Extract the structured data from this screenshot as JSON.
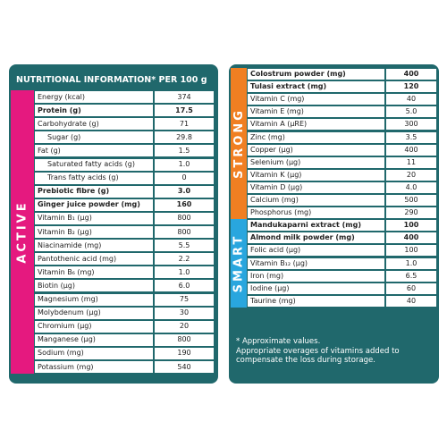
{
  "left": {
    "title": "NUTRITIONAL INFORMATION* PER 100 g",
    "side_label": "ACTIVE",
    "side_color": "#e5197f",
    "rows": [
      {
        "name": "Energy (kcal)",
        "value": "374"
      },
      {
        "name": "Protein (g)",
        "value": "17.5",
        "bold": true
      },
      {
        "name": "Carbohydrate (g)",
        "value": "71"
      },
      {
        "name": "Sugar (g)",
        "value": "29.8",
        "indent": true
      },
      {
        "name": "Fat (g)",
        "value": "1.5"
      },
      {
        "name": "Saturated fatty acids (g)",
        "value": "1.0",
        "indent": true
      },
      {
        "name": "Trans fatty acids (g)",
        "value": "0",
        "indent": true
      },
      {
        "name": "Prebiotic fibre (g)",
        "value": "3.0",
        "bold": true
      },
      {
        "name": "Ginger juice powder (mg)",
        "value": "160",
        "bold": true
      },
      {
        "name": "Vitamin B₁ (µg)",
        "value": "800"
      },
      {
        "name": "Vitamin B₂ (µg)",
        "value": "800"
      },
      {
        "name": "Niacinamide (mg)",
        "value": "5.5"
      },
      {
        "name": "Pantothenic acid (mg)",
        "value": "2.2"
      },
      {
        "name": "Vitamin B₆ (mg)",
        "value": "1.0"
      },
      {
        "name": "Biotin (µg)",
        "value": "6.0"
      },
      {
        "name": "Magnesium (mg)",
        "value": "75"
      },
      {
        "name": "Molybdenum (µg)",
        "value": "30"
      },
      {
        "name": "Chromium (µg)",
        "value": "20"
      },
      {
        "name": "Manganese (µg)",
        "value": "800"
      },
      {
        "name": "Sodium (mg)",
        "value": "190"
      },
      {
        "name": "Potassium (mg)",
        "value": "540"
      }
    ]
  },
  "right": {
    "groups": [
      {
        "side_label": "STRONG",
        "side_color": "#f07f22",
        "rows": [
          {
            "name": "Colostrum powder (mg)",
            "value": "400",
            "bold": true
          },
          {
            "name": "Tulasi extract (mg)",
            "value": "120",
            "bold": true
          },
          {
            "name": "Vitamin C (mg)",
            "value": "40"
          },
          {
            "name": "Vitamin E (mg)",
            "value": "5.0"
          },
          {
            "name": "Vitamin A (µRE)",
            "value": "300"
          },
          {
            "name": "Zinc (mg)",
            "value": "3.5"
          },
          {
            "name": "Copper (µg)",
            "value": "400"
          },
          {
            "name": "Selenium (µg)",
            "value": "11"
          },
          {
            "name": "Vitamin K (µg)",
            "value": "20"
          },
          {
            "name": "Vitamin D (µg)",
            "value": "4.0"
          },
          {
            "name": "Calcium (mg)",
            "value": "500"
          },
          {
            "name": "Phosphorus (mg)",
            "value": "290"
          }
        ]
      },
      {
        "side_label": "SMART",
        "side_color": "#29a6de",
        "rows": [
          {
            "name": "Mandukaparni extract (mg)",
            "value": "100",
            "bold": true
          },
          {
            "name": "Almond milk powder (mg)",
            "value": "400",
            "bold": true
          },
          {
            "name": "Folic acid (µg)",
            "value": "100"
          },
          {
            "name": "Vitamin B₁₂ (µg)",
            "value": "1.0"
          },
          {
            "name": "Iron (mg)",
            "value": "6.5"
          },
          {
            "name": "Iodine (µg)",
            "value": "60"
          },
          {
            "name": "Taurine (mg)",
            "value": "40"
          }
        ]
      }
    ],
    "footnote": [
      "* Approximate values.",
      "Appropriate overages of vitamins added to",
      "compensate the loss during storage."
    ]
  }
}
